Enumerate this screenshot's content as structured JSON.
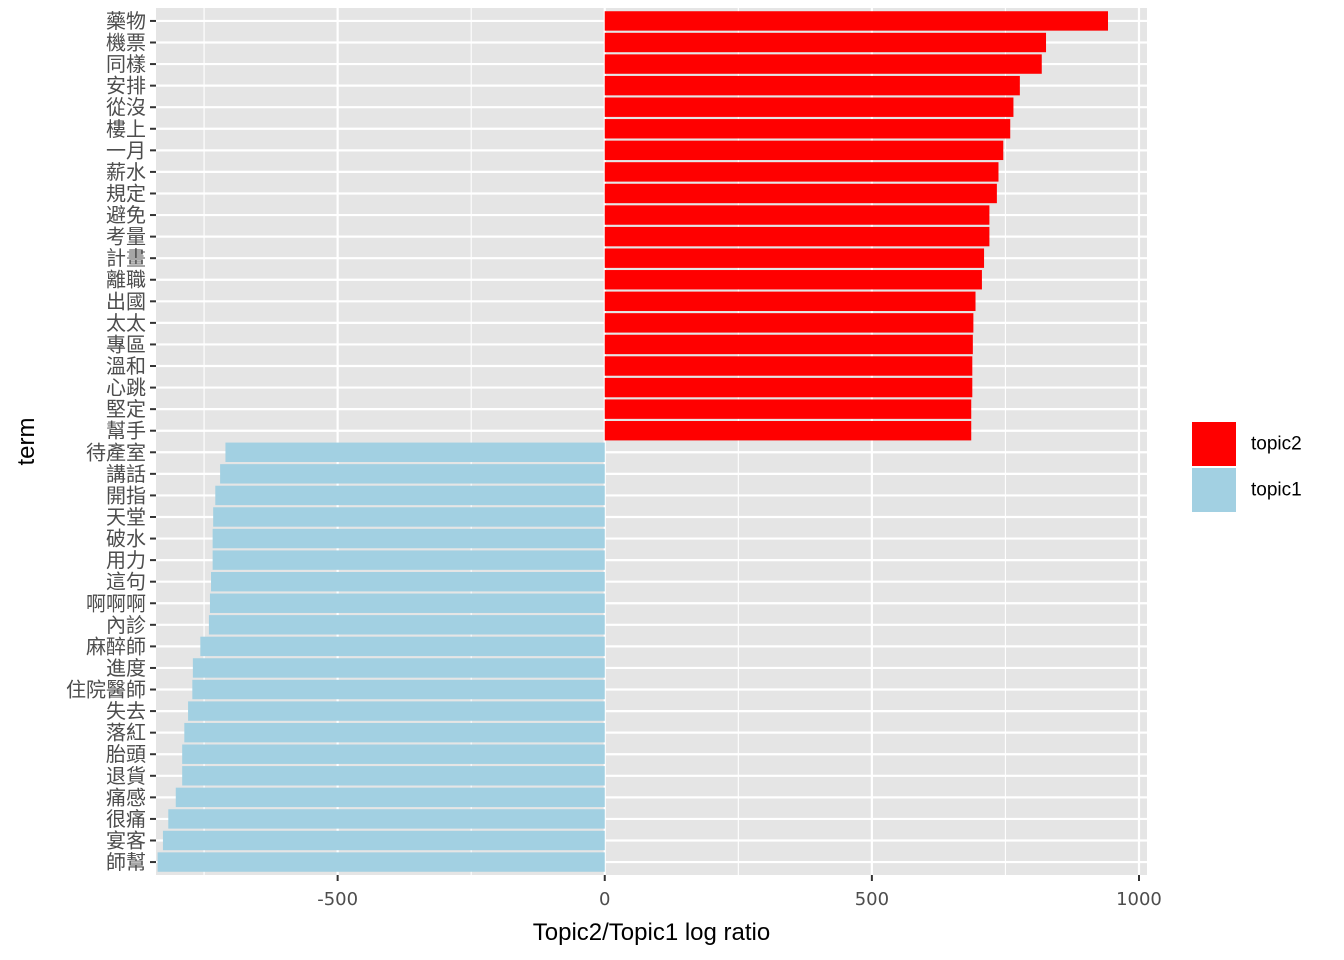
{
  "chart_data": {
    "type": "bar",
    "orientation": "horizontal",
    "xlabel": "Topic2/Topic1 log ratio",
    "ylabel": "term",
    "xlim": [
      -840,
      1015
    ],
    "x_ticks": [
      -500,
      0,
      500,
      1000
    ],
    "x_tick_labels": [
      "-500",
      "0",
      "500",
      "1000"
    ],
    "grid": true,
    "legend": {
      "position": "right",
      "entries": [
        {
          "label": "topic2",
          "color": "#FF0000"
        },
        {
          "label": "topic1",
          "color": "#A2D0E2"
        }
      ]
    },
    "categories": [
      "藥物",
      "機票",
      "同樣",
      "安排",
      "從沒",
      "樓上",
      "一月",
      "薪水",
      "規定",
      "避免",
      "考量",
      "計畫",
      "離職",
      "出國",
      "太太",
      "專區",
      "溫和",
      "心跳",
      "堅定",
      "幫手",
      "待產室",
      "講話",
      "開指",
      "天堂",
      "破水",
      "用力",
      "這句",
      "啊啊啊",
      "內診",
      "麻醉師",
      "進度",
      "住院醫師",
      "失去",
      "落紅",
      "胎頭",
      "退貨",
      "痛感",
      "很痛",
      "宴客",
      "師幫"
    ],
    "values": [
      942,
      826,
      818,
      777,
      765,
      759,
      746,
      737,
      734,
      720,
      720,
      710,
      706,
      694,
      690,
      689,
      688,
      688,
      686,
      686,
      -710,
      -720,
      -729,
      -733,
      -734,
      -734,
      -737,
      -739,
      -741,
      -757,
      -771,
      -772,
      -780,
      -787,
      -791,
      -791,
      -803,
      -817,
      -827,
      -837
    ],
    "groups": [
      "topic2",
      "topic2",
      "topic2",
      "topic2",
      "topic2",
      "topic2",
      "topic2",
      "topic2",
      "topic2",
      "topic2",
      "topic2",
      "topic2",
      "topic2",
      "topic2",
      "topic2",
      "topic2",
      "topic2",
      "topic2",
      "topic2",
      "topic2",
      "topic1",
      "topic1",
      "topic1",
      "topic1",
      "topic1",
      "topic1",
      "topic1",
      "topic1",
      "topic1",
      "topic1",
      "topic1",
      "topic1",
      "topic1",
      "topic1",
      "topic1",
      "topic1",
      "topic1",
      "topic1",
      "topic1",
      "topic1"
    ],
    "panel_background": "#E5E5E5",
    "gridline_color": "#FFFFFF"
  }
}
